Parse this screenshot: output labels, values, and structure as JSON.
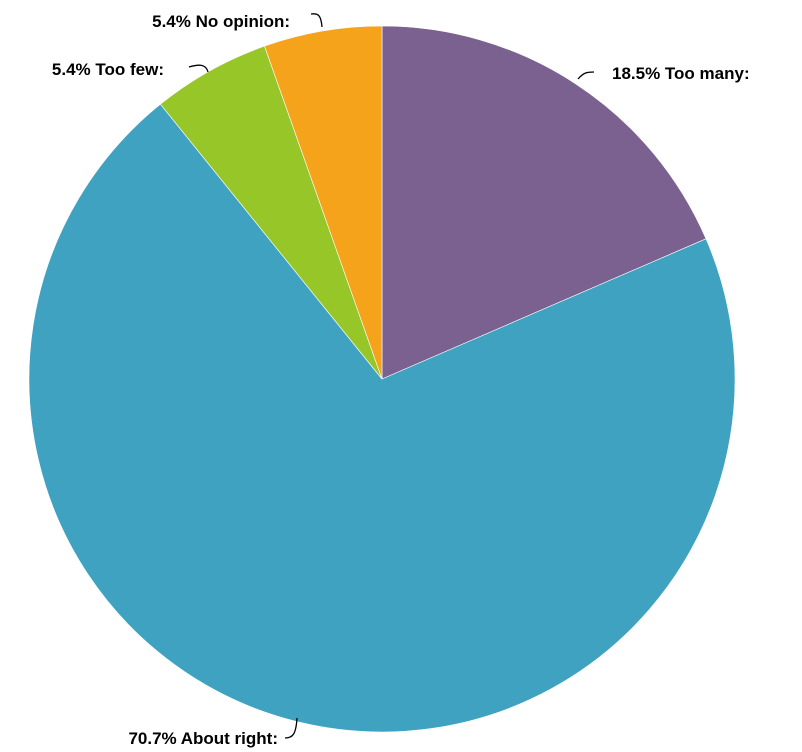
{
  "chart_data": {
    "type": "pie",
    "title": "",
    "start": "top",
    "direction": "clockwise",
    "slices": [
      {
        "label": "18.5% Too many:",
        "category": "Too many",
        "value": 18.5,
        "color": "#7b618f"
      },
      {
        "label": "70.7% About right:",
        "category": "About right",
        "value": 70.7,
        "color": "#3fa2c1"
      },
      {
        "label": "5.4% Too few:",
        "category": "Too few",
        "value": 5.4,
        "color": "#97c628"
      },
      {
        "label": "5.4% No opinion:",
        "category": "No opinion",
        "value": 5.4,
        "color": "#f4a31b"
      }
    ]
  }
}
